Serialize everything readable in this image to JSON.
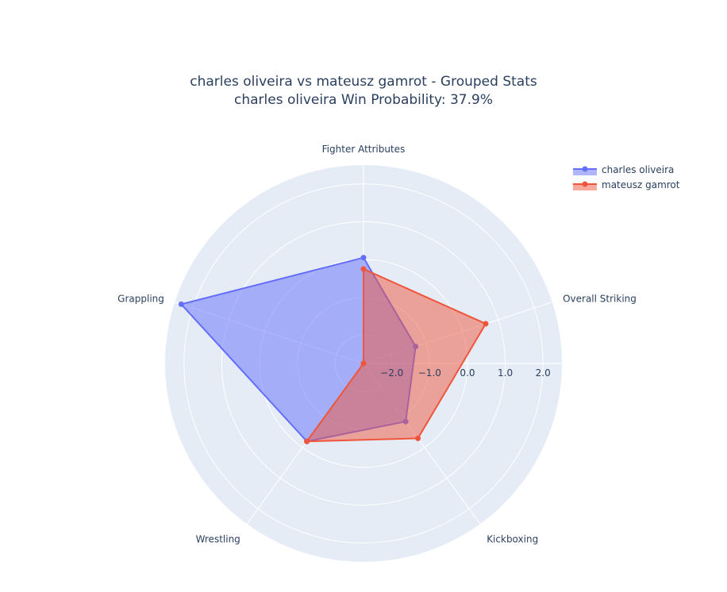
{
  "title_line1": "charles oliveira vs mateusz gamrot - Grouped Stats",
  "title_line2": "charles oliveira Win Probability: 37.9%",
  "chart_data": {
    "type": "radar",
    "categories": [
      "Fighter Attributes",
      "Overall Striking",
      "Kickboxing",
      "Wrestling",
      "Grappling"
    ],
    "radial_range": [
      -2.75,
      2.5
    ],
    "radial_ticks": [
      -2.0,
      -1.0,
      0.0,
      1.0,
      2.0
    ],
    "radial_tick_labels": [
      "−2.0",
      "−1.0",
      "0.0",
      "1.0",
      "2.0"
    ],
    "series": [
      {
        "name": "charles oliveira",
        "color": "#636efa",
        "values": [
          0.05,
          -1.3,
          -0.85,
          -0.2,
          2.32
        ]
      },
      {
        "name": "mateusz gamrot",
        "color": "#ef553b",
        "values": [
          -0.25,
          0.65,
          -0.3,
          -0.2,
          -2.75
        ]
      }
    ],
    "legend_position": "top-right",
    "background": "#e5ecf6",
    "grid_color": "#ffffff"
  }
}
